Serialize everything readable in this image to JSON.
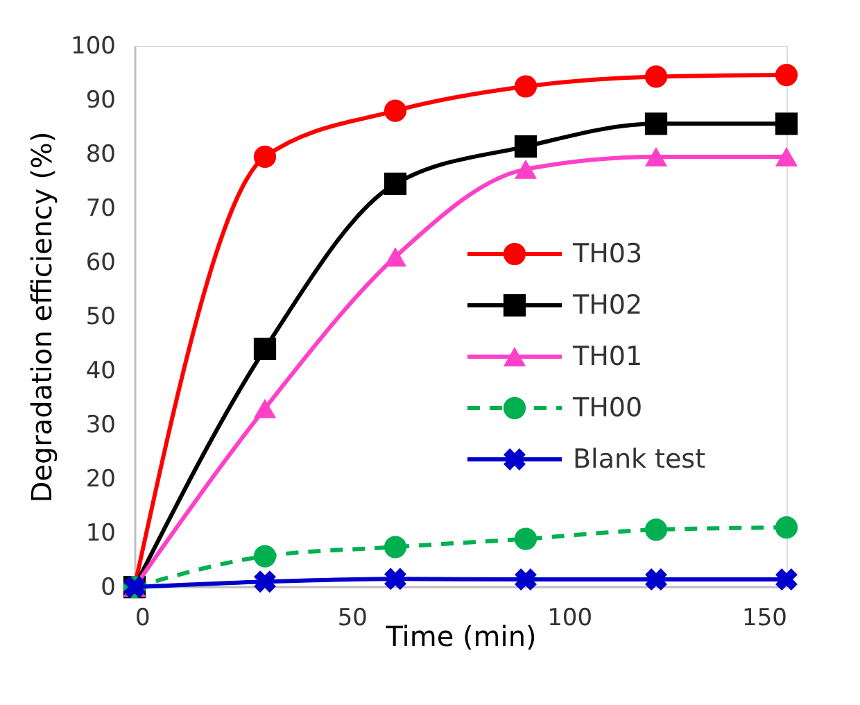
{
  "chart_data": {
    "type": "line",
    "xlabel": "Time (min)",
    "ylabel": "Degradation efficiency (%)",
    "x": [
      0,
      30,
      60,
      90,
      120,
      150
    ],
    "series": [
      {
        "name": "TH03",
        "color": "#ff0000",
        "marker": "circle",
        "values": [
          0,
          79.5,
          88,
          92.5,
          94.3,
          94.6
        ]
      },
      {
        "name": "TH02",
        "color": "#000000",
        "marker": "square",
        "values": [
          0,
          44,
          74.5,
          81.4,
          85.6,
          85.6
        ]
      },
      {
        "name": "TH01",
        "color": "#ff40c8",
        "marker": "triangle",
        "values": [
          0,
          33,
          61,
          77.2,
          79.5,
          79.5
        ]
      },
      {
        "name": "TH00",
        "color": "#00b050",
        "marker": "circle",
        "line_style": "dashed",
        "values": [
          0,
          5.7,
          7.4,
          8.9,
          10.6,
          11
        ]
      },
      {
        "name": "Blank test",
        "color": "#0000cc",
        "marker": "cross",
        "values": [
          0,
          1,
          1.5,
          1.4,
          1.4,
          1.4
        ]
      }
    ],
    "xlim": [
      0,
      150
    ],
    "xticks": [
      0,
      50,
      100,
      150
    ],
    "ylim": [
      0,
      100
    ],
    "yticks": [
      0,
      10,
      20,
      30,
      40,
      50,
      60,
      70,
      80,
      90,
      100
    ],
    "grid": false,
    "legend": "right",
    "line_style": "solid"
  }
}
